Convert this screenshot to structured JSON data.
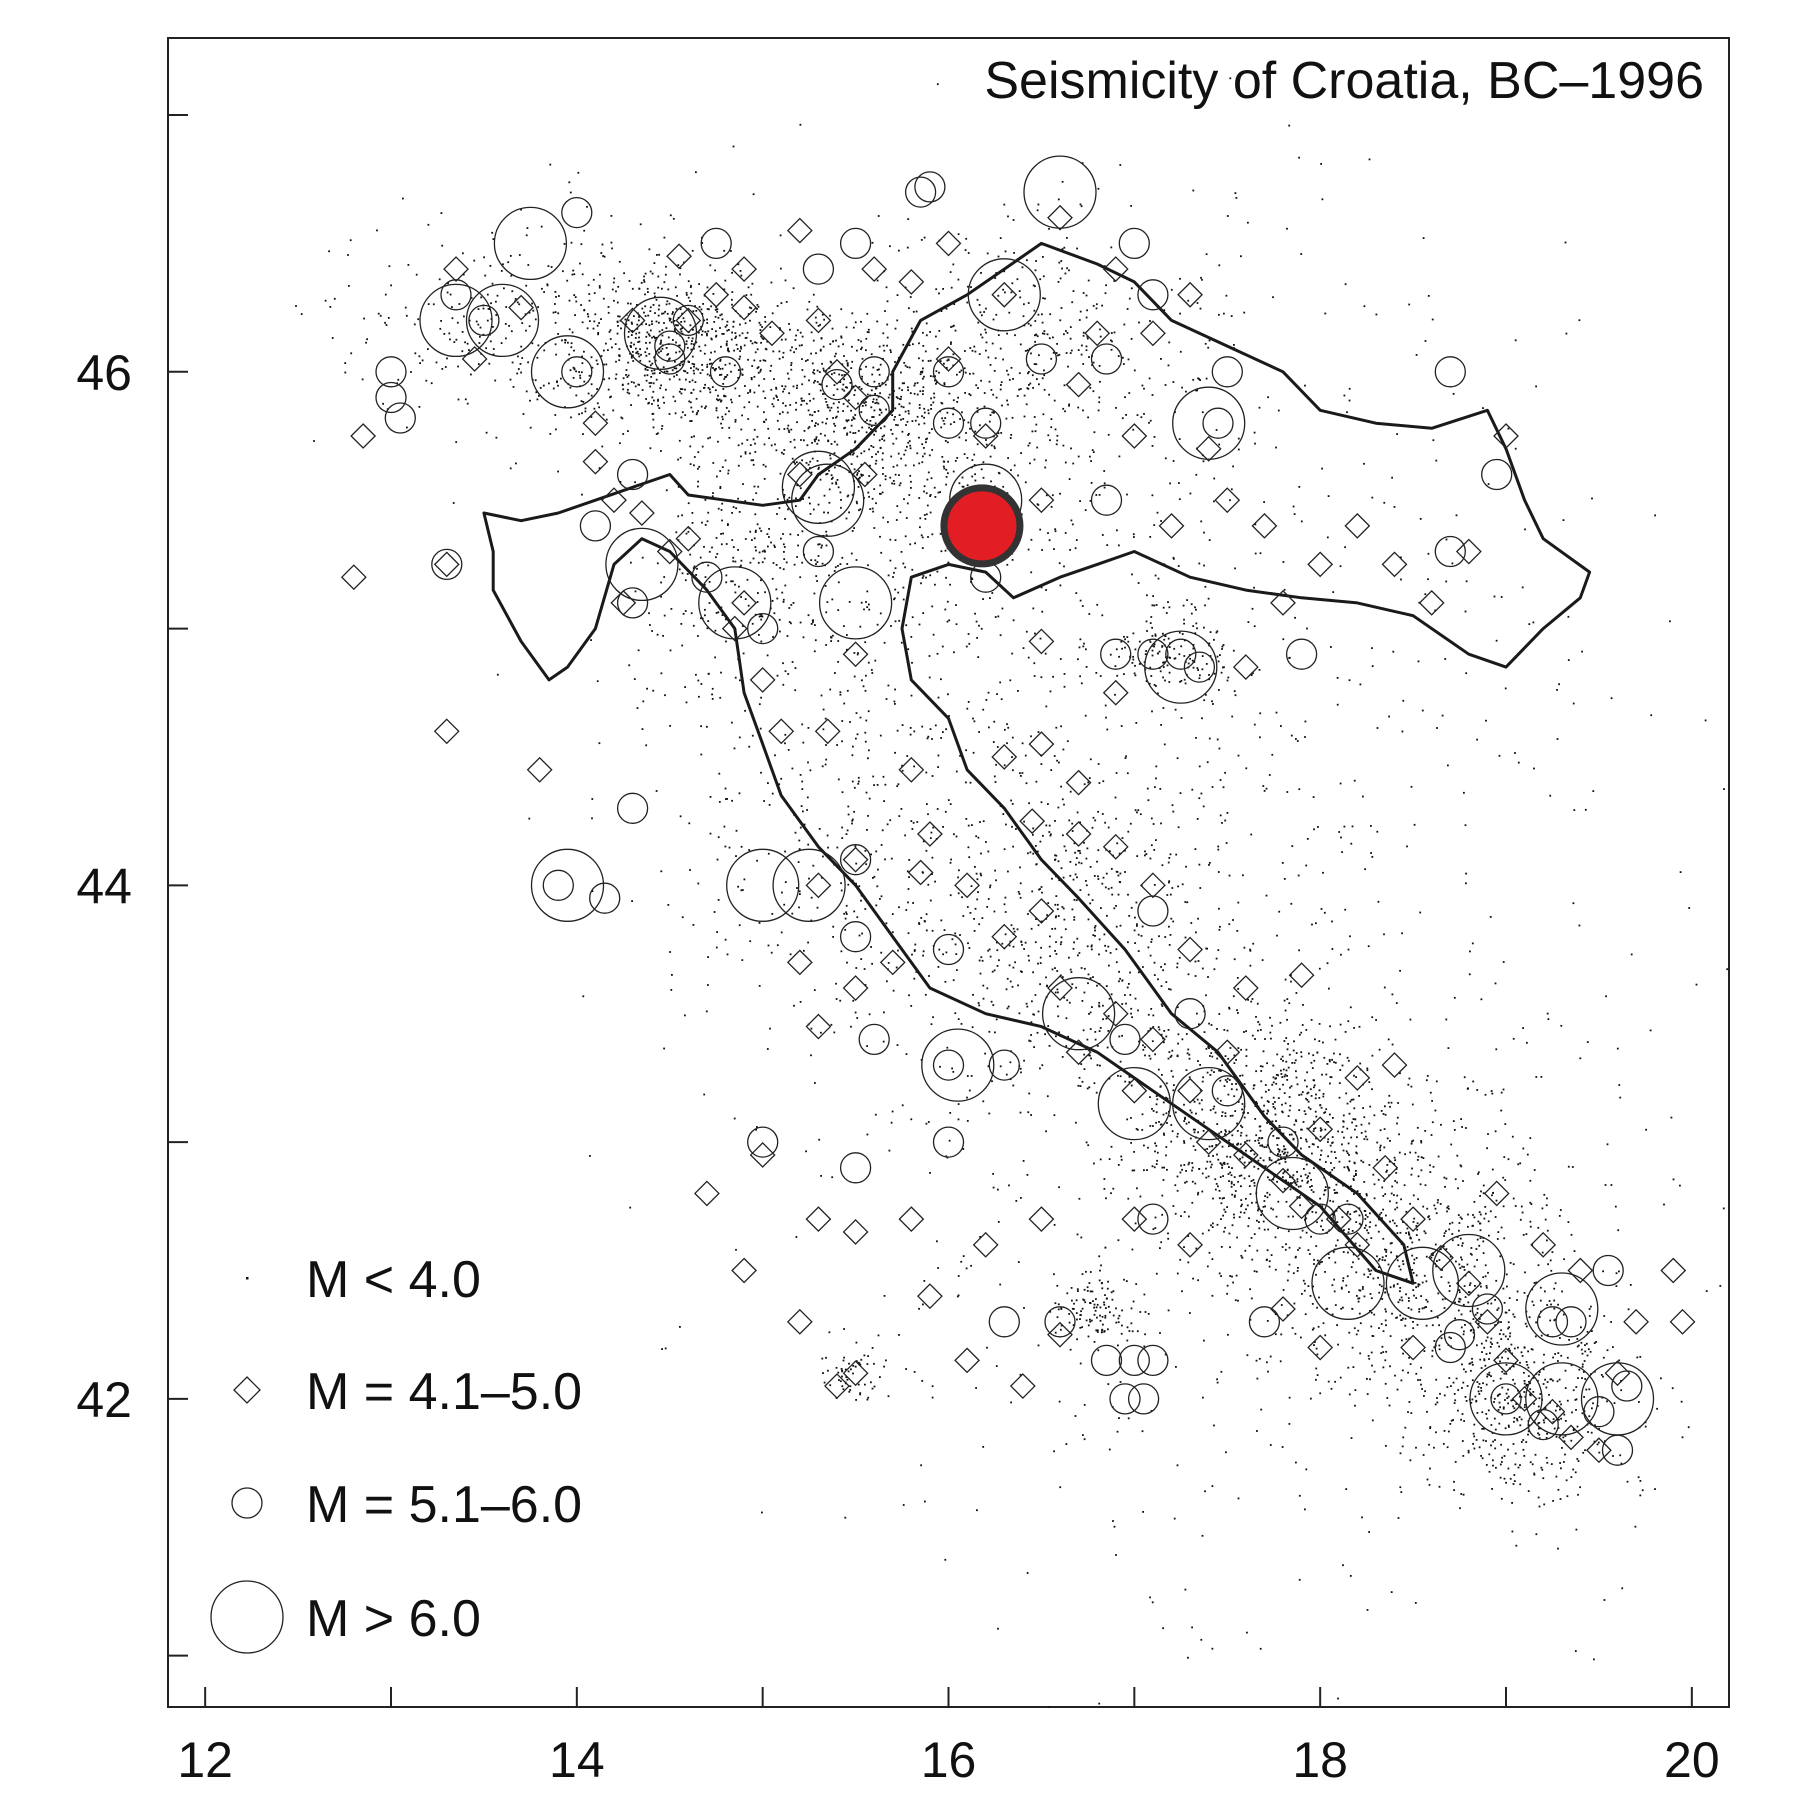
{
  "chart_data": {
    "type": "scatter",
    "title": "Seismicity of Croatia, BC–1996",
    "xlabel": "",
    "ylabel": "",
    "xlim": [
      11.8,
      20.2
    ],
    "ylim": [
      40.8,
      47.3
    ],
    "x_ticks": [
      12,
      14,
      16,
      18,
      20
    ],
    "x_minor_ticks": [
      13,
      15,
      17,
      19
    ],
    "y_ticks": [
      42,
      44,
      46
    ],
    "y_minor_ticks": [
      41,
      43,
      45,
      47
    ],
    "grid": false,
    "legend_position": "bottom-left",
    "highlight": {
      "lon": 16.18,
      "lat": 45.4,
      "color": "#e21d24",
      "edge": "#333333"
    },
    "legend": [
      {
        "class": "small",
        "label": "M < 4.0",
        "symbol": "dot"
      },
      {
        "class": "m41",
        "label": "M = 4.1–5.0",
        "symbol": "diamond"
      },
      {
        "class": "m51",
        "label": "M = 5.1–6.0",
        "symbol": "circle"
      },
      {
        "class": "m6",
        "label": "M > 6.0",
        "symbol": "large-circle"
      }
    ],
    "border": [
      [
        13.5,
        45.45
      ],
      [
        13.7,
        45.42
      ],
      [
        13.9,
        45.45
      ],
      [
        14.1,
        45.5
      ],
      [
        14.3,
        45.55
      ],
      [
        14.5,
        45.6
      ],
      [
        14.6,
        45.52
      ],
      [
        14.8,
        45.5
      ],
      [
        15.0,
        45.48
      ],
      [
        15.2,
        45.5
      ],
      [
        15.3,
        45.6
      ],
      [
        15.5,
        45.7
      ],
      [
        15.7,
        45.85
      ],
      [
        15.7,
        46.0
      ],
      [
        15.85,
        46.2
      ],
      [
        16.1,
        46.3
      ],
      [
        16.3,
        46.4
      ],
      [
        16.5,
        46.5
      ],
      [
        16.8,
        46.42
      ],
      [
        17.0,
        46.35
      ],
      [
        17.2,
        46.2
      ],
      [
        17.5,
        46.1
      ],
      [
        17.8,
        46.0
      ],
      [
        18.0,
        45.85
      ],
      [
        18.3,
        45.8
      ],
      [
        18.6,
        45.78
      ],
      [
        18.9,
        45.85
      ],
      [
        19.0,
        45.7
      ],
      [
        19.1,
        45.5
      ],
      [
        19.2,
        45.35
      ],
      [
        19.45,
        45.22
      ],
      [
        19.4,
        45.12
      ],
      [
        19.2,
        45.0
      ],
      [
        19.0,
        44.85
      ],
      [
        18.8,
        44.9
      ],
      [
        18.5,
        45.05
      ],
      [
        18.2,
        45.1
      ],
      [
        17.9,
        45.12
      ],
      [
        17.6,
        45.15
      ],
      [
        17.3,
        45.2
      ],
      [
        17.0,
        45.3
      ],
      [
        16.8,
        45.25
      ],
      [
        16.6,
        45.2
      ],
      [
        16.35,
        45.12
      ],
      [
        16.2,
        45.22
      ],
      [
        16.0,
        45.25
      ],
      [
        15.8,
        45.2
      ],
      [
        15.75,
        45.0
      ],
      [
        15.8,
        44.8
      ],
      [
        16.0,
        44.65
      ],
      [
        16.1,
        44.45
      ],
      [
        16.3,
        44.3
      ],
      [
        16.5,
        44.1
      ],
      [
        16.7,
        43.95
      ],
      [
        16.95,
        43.75
      ],
      [
        17.2,
        43.5
      ],
      [
        17.45,
        43.35
      ],
      [
        17.7,
        43.1
      ],
      [
        17.9,
        42.95
      ],
      [
        18.2,
        42.8
      ],
      [
        18.45,
        42.6
      ],
      [
        18.5,
        42.45
      ],
      [
        18.3,
        42.5
      ],
      [
        18.0,
        42.75
      ],
      [
        17.7,
        42.9
      ],
      [
        17.4,
        43.05
      ],
      [
        17.1,
        43.2
      ],
      [
        16.8,
        43.35
      ],
      [
        16.5,
        43.45
      ],
      [
        16.2,
        43.5
      ],
      [
        15.9,
        43.6
      ],
      [
        15.7,
        43.8
      ],
      [
        15.5,
        44.0
      ],
      [
        15.3,
        44.15
      ],
      [
        15.1,
        44.35
      ],
      [
        15.0,
        44.55
      ],
      [
        14.9,
        44.75
      ],
      [
        14.85,
        45.0
      ],
      [
        14.7,
        45.15
      ],
      [
        14.5,
        45.3
      ],
      [
        14.35,
        45.35
      ],
      [
        14.2,
        45.25
      ],
      [
        14.1,
        45.0
      ],
      [
        13.95,
        44.85
      ],
      [
        13.85,
        44.8
      ],
      [
        13.7,
        44.95
      ],
      [
        13.55,
        45.15
      ],
      [
        13.55,
        45.3
      ],
      [
        13.5,
        45.45
      ]
    ],
    "clusters": [
      {
        "lon": 14.5,
        "lat": 46.1,
        "sx": 0.32,
        "sy": 0.17,
        "n": 700
      },
      {
        "lon": 15.45,
        "lat": 45.85,
        "sx": 0.3,
        "sy": 0.2,
        "n": 500
      },
      {
        "lon": 14.9,
        "lat": 45.3,
        "sx": 0.3,
        "sy": 0.25,
        "n": 300
      },
      {
        "lon": 15.9,
        "lat": 45.6,
        "sx": 0.35,
        "sy": 0.3,
        "n": 350
      },
      {
        "lon": 16.5,
        "lat": 46.1,
        "sx": 0.5,
        "sy": 0.25,
        "n": 350
      },
      {
        "lon": 17.2,
        "lat": 44.9,
        "sx": 0.2,
        "sy": 0.1,
        "n": 150
      },
      {
        "lon": 16.7,
        "lat": 43.8,
        "sx": 0.5,
        "sy": 0.35,
        "n": 600
      },
      {
        "lon": 17.7,
        "lat": 43.0,
        "sx": 0.35,
        "sy": 0.25,
        "n": 900
      },
      {
        "lon": 18.5,
        "lat": 42.5,
        "sx": 0.4,
        "sy": 0.3,
        "n": 700
      },
      {
        "lon": 19.1,
        "lat": 42.0,
        "sx": 0.3,
        "sy": 0.2,
        "n": 450
      },
      {
        "lon": 15.5,
        "lat": 44.2,
        "sx": 0.5,
        "sy": 0.4,
        "n": 300
      },
      {
        "lon": 13.6,
        "lat": 46.2,
        "sx": 0.4,
        "sy": 0.2,
        "n": 250
      },
      {
        "lon": 16.8,
        "lat": 42.35,
        "sx": 0.12,
        "sy": 0.08,
        "n": 120
      },
      {
        "lon": 15.5,
        "lat": 42.1,
        "sx": 0.1,
        "sy": 0.06,
        "n": 60
      },
      {
        "lon": 16.8,
        "lat": 45.0,
        "sx": 1.3,
        "sy": 0.8,
        "n": 700
      },
      {
        "lon": 17.5,
        "lat": 42.8,
        "sx": 1.3,
        "sy": 0.9,
        "n": 500
      }
    ],
    "m41_events": [
      [
        12.85,
        45.75
      ],
      [
        12.8,
        45.2
      ],
      [
        13.3,
        45.25
      ],
      [
        13.3,
        44.6
      ],
      [
        13.8,
        44.45
      ],
      [
        13.35,
        46.4
      ],
      [
        13.7,
        46.25
      ],
      [
        13.45,
        46.05
      ],
      [
        14.1,
        45.65
      ],
      [
        14.2,
        45.5
      ],
      [
        14.25,
        45.1
      ],
      [
        14.35,
        45.45
      ],
      [
        14.5,
        45.3
      ],
      [
        14.6,
        45.35
      ],
      [
        14.55,
        46.45
      ],
      [
        14.3,
        46.2
      ],
      [
        14.6,
        46.2
      ],
      [
        14.75,
        46.3
      ],
      [
        14.9,
        46.4
      ],
      [
        15.05,
        46.15
      ],
      [
        15.2,
        46.55
      ],
      [
        15.3,
        46.2
      ],
      [
        15.4,
        46.0
      ],
      [
        15.5,
        45.9
      ],
      [
        15.55,
        45.6
      ],
      [
        15.2,
        45.6
      ],
      [
        14.85,
        45.0
      ],
      [
        14.9,
        45.1
      ],
      [
        15.0,
        44.8
      ],
      [
        15.1,
        44.6
      ],
      [
        15.35,
        44.6
      ],
      [
        15.5,
        44.9
      ],
      [
        15.5,
        44.1
      ],
      [
        15.3,
        44.0
      ],
      [
        15.2,
        43.7
      ],
      [
        15.3,
        43.45
      ],
      [
        15.5,
        43.6
      ],
      [
        15.7,
        43.7
      ],
      [
        15.85,
        44.05
      ],
      [
        15.9,
        44.2
      ],
      [
        16.1,
        44.0
      ],
      [
        16.3,
        43.8
      ],
      [
        16.5,
        43.9
      ],
      [
        16.6,
        43.6
      ],
      [
        16.7,
        43.35
      ],
      [
        16.9,
        43.5
      ],
      [
        17.0,
        43.2
      ],
      [
        17.1,
        43.4
      ],
      [
        17.3,
        43.2
      ],
      [
        17.4,
        43.0
      ],
      [
        17.5,
        43.35
      ],
      [
        17.6,
        42.95
      ],
      [
        17.8,
        42.85
      ],
      [
        17.9,
        42.75
      ],
      [
        18.0,
        43.05
      ],
      [
        18.1,
        42.7
      ],
      [
        18.2,
        42.6
      ],
      [
        18.35,
        42.9
      ],
      [
        18.5,
        42.7
      ],
      [
        18.65,
        42.55
      ],
      [
        18.8,
        42.45
      ],
      [
        18.9,
        42.3
      ],
      [
        19.0,
        42.15
      ],
      [
        19.1,
        42.0
      ],
      [
        19.25,
        41.95
      ],
      [
        19.35,
        41.85
      ],
      [
        19.5,
        41.8
      ],
      [
        19.6,
        42.1
      ],
      [
        19.7,
        42.3
      ],
      [
        19.4,
        42.5
      ],
      [
        18.2,
        43.25
      ],
      [
        18.4,
        43.3
      ],
      [
        17.9,
        43.65
      ],
      [
        17.6,
        43.6
      ],
      [
        17.3,
        43.75
      ],
      [
        17.1,
        44.0
      ],
      [
        16.9,
        44.15
      ],
      [
        16.7,
        44.2
      ],
      [
        16.45,
        44.25
      ],
      [
        16.3,
        44.5
      ],
      [
        15.8,
        42.7
      ],
      [
        15.9,
        42.4
      ],
      [
        16.2,
        42.6
      ],
      [
        16.4,
        42.05
      ],
      [
        16.6,
        42.25
      ],
      [
        16.1,
        42.15
      ],
      [
        15.3,
        42.7
      ],
      [
        15.2,
        42.3
      ],
      [
        15.0,
        42.95
      ],
      [
        14.7,
        42.8
      ],
      [
        14.9,
        42.5
      ],
      [
        15.5,
        42.65
      ],
      [
        15.5,
        42.1
      ],
      [
        15.4,
        42.05
      ],
      [
        16.5,
        42.7
      ],
      [
        17.0,
        42.7
      ],
      [
        17.3,
        42.6
      ],
      [
        17.8,
        42.35
      ],
      [
        18.0,
        42.2
      ],
      [
        18.5,
        42.2
      ],
      [
        18.95,
        42.8
      ],
      [
        19.2,
        42.6
      ],
      [
        19.9,
        42.5
      ],
      [
        19.95,
        42.3
      ],
      [
        16.7,
        44.4
      ],
      [
        16.5,
        44.55
      ],
      [
        16.5,
        44.95
      ],
      [
        16.1,
        45.5
      ],
      [
        16.2,
        45.75
      ],
      [
        16.5,
        45.5
      ],
      [
        16.7,
        45.95
      ],
      [
        17.0,
        45.75
      ],
      [
        17.2,
        45.4
      ],
      [
        17.5,
        45.5
      ],
      [
        17.7,
        45.4
      ],
      [
        17.8,
        45.1
      ],
      [
        18.0,
        45.25
      ],
      [
        18.2,
        45.4
      ],
      [
        18.4,
        45.25
      ],
      [
        18.6,
        45.1
      ],
      [
        18.8,
        45.3
      ],
      [
        19.0,
        45.75
      ],
      [
        17.4,
        45.7
      ],
      [
        16.3,
        46.3
      ],
      [
        16.0,
        46.5
      ],
      [
        16.6,
        46.6
      ],
      [
        16.9,
        46.4
      ],
      [
        17.1,
        46.15
      ],
      [
        17.3,
        46.3
      ],
      [
        16.8,
        46.15
      ],
      [
        16.9,
        44.75
      ],
      [
        17.6,
        44.85
      ],
      [
        15.8,
        44.45
      ],
      [
        16.0,
        46.05
      ],
      [
        15.6,
        46.4
      ],
      [
        15.8,
        46.35
      ],
      [
        14.9,
        46.25
      ],
      [
        14.1,
        45.8
      ]
    ],
    "m51_events": [
      [
        13.0,
        46.0
      ],
      [
        13.0,
        45.9
      ],
      [
        13.05,
        45.82
      ],
      [
        13.3,
        45.25
      ],
      [
        13.35,
        46.3
      ],
      [
        13.5,
        46.2
      ],
      [
        14.0,
        46.62
      ],
      [
        14.0,
        46.0
      ],
      [
        14.3,
        45.6
      ],
      [
        14.1,
        45.4
      ],
      [
        14.5,
        46.1
      ],
      [
        14.5,
        46.05
      ],
      [
        14.6,
        46.2
      ],
      [
        14.8,
        46.0
      ],
      [
        14.75,
        46.5
      ],
      [
        15.3,
        46.4
      ],
      [
        15.5,
        46.5
      ],
      [
        15.6,
        46.0
      ],
      [
        15.4,
        45.95
      ],
      [
        15.6,
        45.85
      ],
      [
        15.85,
        46.7
      ],
      [
        15.9,
        46.72
      ],
      [
        16.0,
        46.0
      ],
      [
        16.0,
        45.8
      ],
      [
        16.2,
        45.8
      ],
      [
        16.5,
        46.05
      ],
      [
        16.85,
        46.05
      ],
      [
        17.0,
        46.5
      ],
      [
        17.1,
        46.3
      ],
      [
        17.45,
        45.8
      ],
      [
        17.5,
        46.0
      ],
      [
        17.1,
        44.9
      ],
      [
        17.25,
        44.9
      ],
      [
        17.35,
        44.85
      ],
      [
        16.9,
        44.9
      ],
      [
        17.9,
        44.9
      ],
      [
        18.7,
        45.3
      ],
      [
        18.95,
        45.6
      ],
      [
        18.7,
        46.0
      ],
      [
        16.85,
        45.5
      ],
      [
        16.2,
        45.3
      ],
      [
        16.2,
        45.2
      ],
      [
        15.3,
        45.3
      ],
      [
        14.7,
        45.2
      ],
      [
        15.0,
        45.0
      ],
      [
        14.3,
        45.1
      ],
      [
        15.5,
        44.1
      ],
      [
        15.5,
        43.8
      ],
      [
        15.6,
        43.4
      ],
      [
        16.0,
        43.3
      ],
      [
        16.3,
        43.3
      ],
      [
        16.0,
        43.0
      ],
      [
        15.0,
        43.0
      ],
      [
        15.5,
        42.9
      ],
      [
        16.95,
        43.4
      ],
      [
        17.3,
        43.5
      ],
      [
        17.5,
        43.2
      ],
      [
        17.8,
        43.0
      ],
      [
        18.0,
        42.7
      ],
      [
        18.15,
        42.7
      ],
      [
        18.7,
        42.2
      ],
      [
        18.75,
        42.25
      ],
      [
        19.0,
        42.0
      ],
      [
        19.2,
        41.9
      ],
      [
        19.5,
        41.95
      ],
      [
        19.65,
        42.05
      ],
      [
        19.6,
        41.8
      ],
      [
        19.25,
        42.3
      ],
      [
        19.35,
        42.3
      ],
      [
        19.55,
        42.5
      ],
      [
        18.9,
        42.35
      ],
      [
        17.7,
        42.3
      ],
      [
        17.1,
        42.15
      ],
      [
        17.0,
        42.15
      ],
      [
        16.95,
        42.0
      ],
      [
        17.05,
        42.0
      ],
      [
        16.85,
        42.15
      ],
      [
        16.6,
        42.3
      ],
      [
        17.1,
        42.7
      ],
      [
        14.3,
        44.3
      ],
      [
        14.15,
        43.95
      ],
      [
        13.9,
        44.0
      ],
      [
        16.3,
        42.3
      ],
      [
        16.0,
        43.75
      ],
      [
        17.1,
        43.9
      ]
    ],
    "m6_events": [
      [
        13.75,
        46.5
      ],
      [
        13.35,
        46.2
      ],
      [
        13.6,
        46.2
      ],
      [
        13.95,
        46.0
      ],
      [
        14.45,
        46.15
      ],
      [
        14.35,
        45.25
      ],
      [
        14.85,
        45.1
      ],
      [
        15.3,
        45.55
      ],
      [
        15.35,
        45.5
      ],
      [
        15.5,
        45.1
      ],
      [
        16.6,
        46.7
      ],
      [
        16.3,
        46.3
      ],
      [
        16.2,
        45.5
      ],
      [
        17.4,
        45.8
      ],
      [
        17.25,
        44.85
      ],
      [
        15.25,
        44.0
      ],
      [
        15.0,
        44.0
      ],
      [
        16.05,
        43.3
      ],
      [
        16.7,
        43.5
      ],
      [
        17.0,
        43.15
      ],
      [
        17.4,
        43.15
      ],
      [
        17.85,
        42.8
      ],
      [
        18.15,
        42.45
      ],
      [
        18.55,
        42.45
      ],
      [
        18.8,
        42.5
      ],
      [
        19.0,
        42.0
      ],
      [
        19.3,
        42.0
      ],
      [
        19.6,
        42.0
      ],
      [
        19.3,
        42.35
      ],
      [
        13.95,
        44.0
      ]
    ]
  }
}
